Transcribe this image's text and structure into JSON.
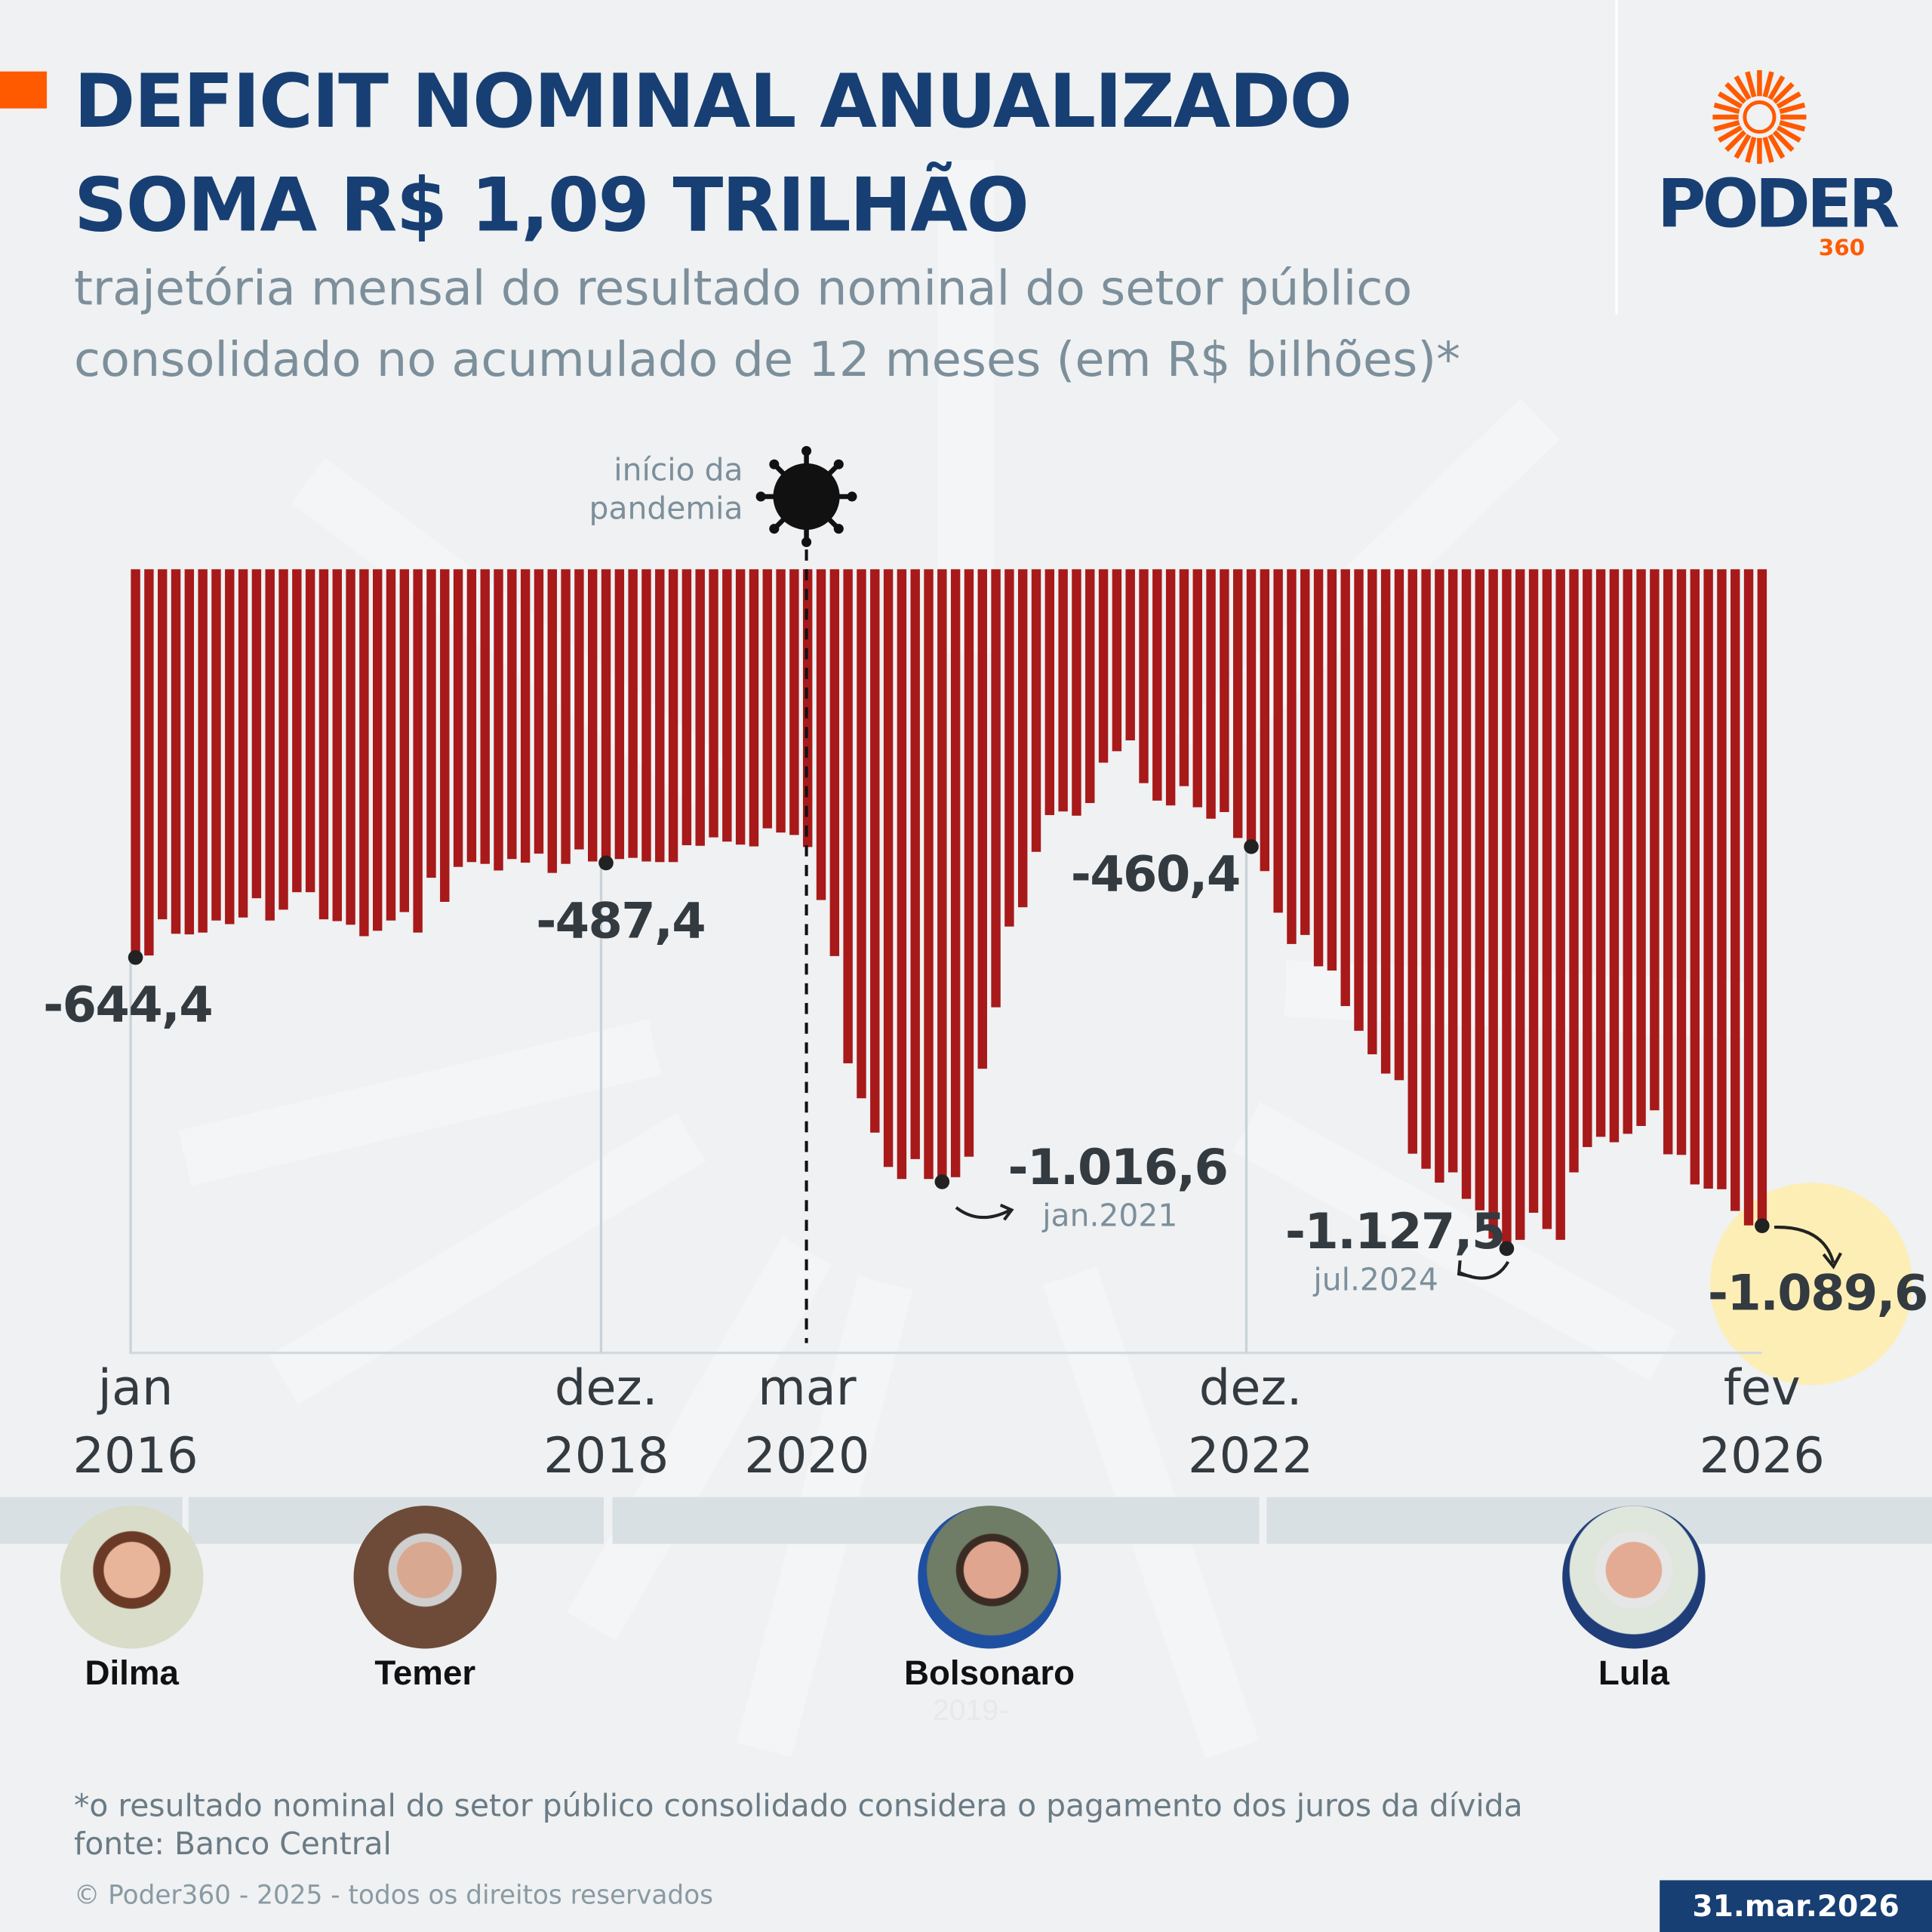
{
  "header": {
    "title_line1": "DEFICIT NOMINAL ANUALIZADO",
    "title_line2": "SOMA R$ 1,09 TRILHÃO",
    "subtitle_line1": "trajetória mensal do resultado nominal do setor público",
    "subtitle_line2": "consolidado no acumulado de 12 meses (em R$ bilhões)*"
  },
  "logo": {
    "text": "PODER",
    "number": "360"
  },
  "colors": {
    "bar": "#a8191a",
    "title": "#173f73",
    "accent": "#ff5a00",
    "highlight": "#fdeeb5"
  },
  "chart_data": {
    "type": "bar",
    "x_start": "jan 2016",
    "x_end": "fev 2026",
    "frequency": "monthly",
    "values": [
      -644.4,
      -641,
      -581,
      -605,
      -606,
      -603,
      -583,
      -589,
      -578,
      -546,
      -583,
      -565,
      -536,
      -536,
      -581,
      -584,
      -590,
      -609,
      -600,
      -583,
      -569,
      -603,
      -512,
      -552,
      -494,
      -486,
      -489,
      -500,
      -481,
      -487,
      -472,
      -504,
      -489,
      -465,
      -485,
      -487.4,
      -481,
      -479,
      -485,
      -486,
      -486,
      -458,
      -459,
      -445,
      -452,
      -457,
      -460,
      -430,
      -437,
      -441,
      -461,
      -549,
      -642,
      -820,
      -878,
      -935,
      -992,
      -1012,
      -979,
      -1012,
      -1016.6,
      -1009,
      -975,
      -829,
      -727,
      -593,
      -561,
      -469,
      -408,
      -402,
      -409,
      -388,
      -321,
      -302,
      -284,
      -355,
      -384,
      -392,
      -360,
      -395,
      -414,
      -403,
      -446,
      -460.4,
      -501,
      -570,
      -622,
      -607,
      -659,
      -666,
      -725,
      -766,
      -805,
      -837,
      -848,
      -970,
      -995,
      -1018,
      -1001,
      -1045,
      -1064,
      -1111,
      -1127.5,
      -1113,
      -1068,
      -1095,
      -1113,
      -1001,
      -959,
      -942,
      -951,
      -937,
      -924,
      -898,
      -971,
      -972,
      -1021,
      -1028,
      -1029,
      -1065,
      -1089,
      -1089.6
    ],
    "ylim": [
      -1150,
      0
    ],
    "x_ticks": [
      {
        "line1": "jan",
        "line2": "2016",
        "index": 0
      },
      {
        "line1": "dez.",
        "line2": "2018",
        "index": 35
      },
      {
        "line1": "mar",
        "line2": "2020",
        "index": 50
      },
      {
        "line1": "dez.",
        "line2": "2022",
        "index": 83
      },
      {
        "line1": "fev",
        "line2": "2026",
        "index": 121
      }
    ],
    "annotations": [
      {
        "label": "-644,4",
        "index": 0
      },
      {
        "label": "-487,4",
        "index": 35
      },
      {
        "label": "-460,4",
        "index": 83
      },
      {
        "label": "-1.016,6",
        "date": "jan.2021",
        "index": 60
      },
      {
        "label": "-1.127,5",
        "date": "jul.2024",
        "index": 102
      },
      {
        "label": "-1.089,6",
        "index": 121
      }
    ],
    "event": {
      "label_line1": "início da",
      "label_line2": "pandemia",
      "index": 50,
      "icon": "virus-icon"
    }
  },
  "presidents": [
    {
      "name": "Dilma",
      "faint": ""
    },
    {
      "name": "Temer",
      "faint": ""
    },
    {
      "name": "Bolsonaro",
      "faint": "2019-"
    },
    {
      "name": "Lula",
      "faint": ""
    }
  ],
  "footer": {
    "note": "*o resultado nominal do setor público consolidado considera o pagamento dos juros da dívida",
    "source": "fonte: Banco Central",
    "copyright": "© Poder360 - 2025 - todos os direitos reservados",
    "date": "31.mar.2026"
  }
}
